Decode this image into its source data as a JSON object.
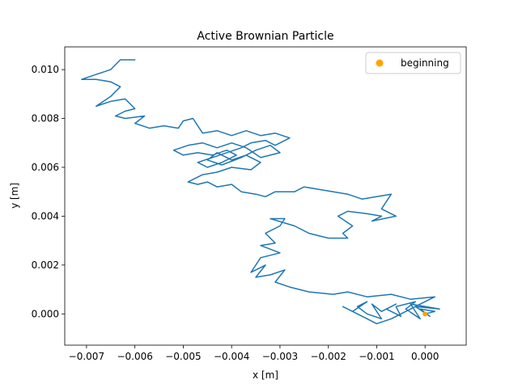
{
  "chart_data": {
    "type": "line",
    "title": "Active Brownian Particle",
    "xlabel": "x [m]",
    "ylabel": "y [m]",
    "xlim": [
      -0.00745,
      0.00085
    ],
    "ylim": [
      -0.00128,
      0.01093
    ],
    "grid": false,
    "legend_placement": "top-right",
    "xticks": [
      -0.007,
      -0.006,
      -0.005,
      -0.004,
      -0.003,
      -0.002,
      -0.001,
      0.0
    ],
    "xtick_labels": [
      "−0.007",
      "−0.006",
      "−0.005",
      "−0.004",
      "−0.003",
      "−0.002",
      "−0.001",
      "0.000"
    ],
    "yticks": [
      0.0,
      0.002,
      0.004,
      0.006,
      0.008,
      0.01
    ],
    "ytick_labels": [
      "0.000",
      "0.002",
      "0.004",
      "0.006",
      "0.008",
      "0.010"
    ],
    "series": [
      {
        "color": "#1f77b4",
        "points": [
          [
            0.0,
            0.0
          ],
          [
            0.0002,
            0.0001
          ],
          [
            -0.0001,
            0.0002
          ],
          [
            0.0001,
            -0.0001
          ],
          [
            -0.0002,
            0.0003
          ],
          [
            0.0003,
            0.0002
          ],
          [
            -0.0003,
            0.0004
          ],
          [
            -0.0001,
            -0.0002
          ],
          [
            -0.0004,
            0.0002
          ],
          [
            -0.0002,
            0.0005
          ],
          [
            -0.0006,
            0.0003
          ],
          [
            -0.0005,
            -0.0001
          ],
          [
            -0.0008,
            0.0002
          ],
          [
            -0.0006,
            0.0004
          ],
          [
            -0.0009,
            0.0001
          ],
          [
            -0.0011,
            0.0004
          ],
          [
            -0.0009,
            -0.0002
          ],
          [
            -0.0012,
            0.0
          ],
          [
            -0.0014,
            0.0003
          ],
          [
            -0.0012,
            0.0005
          ],
          [
            -0.0015,
            0.0001
          ],
          [
            -0.0017,
            0.0003
          ],
          [
            -0.0013,
            -0.0001
          ],
          [
            -0.001,
            -0.0004
          ],
          [
            -0.0007,
            -0.0002
          ],
          [
            -0.0004,
            0.0001
          ],
          [
            -0.0001,
            0.0004
          ],
          [
            0.0002,
            0.0007
          ],
          [
            -0.0003,
            0.0006
          ],
          [
            -0.0007,
            0.0008
          ],
          [
            -0.0012,
            0.0007
          ],
          [
            -0.0016,
            0.0009
          ],
          [
            -0.0019,
            0.0008
          ],
          [
            -0.0024,
            0.0009
          ],
          [
            -0.0028,
            0.0011
          ],
          [
            -0.0031,
            0.0013
          ],
          [
            -0.0029,
            0.0018
          ],
          [
            -0.0032,
            0.0016
          ],
          [
            -0.0035,
            0.0015
          ],
          [
            -0.0033,
            0.002
          ],
          [
            -0.0036,
            0.0017
          ],
          [
            -0.0034,
            0.0023
          ],
          [
            -0.003,
            0.0025
          ],
          [
            -0.0034,
            0.0028
          ],
          [
            -0.0031,
            0.0029
          ],
          [
            -0.0033,
            0.0033
          ],
          [
            -0.003,
            0.0036
          ],
          [
            -0.0029,
            0.0039
          ],
          [
            -0.0032,
            0.0039
          ],
          [
            -0.0027,
            0.0036
          ],
          [
            -0.0024,
            0.0033
          ],
          [
            -0.002,
            0.0031
          ],
          [
            -0.0016,
            0.0031
          ],
          [
            -0.0017,
            0.0033
          ],
          [
            -0.0015,
            0.0036
          ],
          [
            -0.0018,
            0.004
          ],
          [
            -0.0016,
            0.0042
          ],
          [
            -0.0012,
            0.0041
          ],
          [
            -0.0009,
            0.004
          ],
          [
            -0.0011,
            0.0038
          ],
          [
            -0.0006,
            0.004
          ],
          [
            -0.0009,
            0.0043
          ],
          [
            -0.0007,
            0.0049
          ],
          [
            -0.001,
            0.0048
          ],
          [
            -0.0013,
            0.0047
          ],
          [
            -0.0016,
            0.0049
          ],
          [
            -0.0019,
            0.005
          ],
          [
            -0.0022,
            0.0051
          ],
          [
            -0.0025,
            0.0052
          ],
          [
            -0.0027,
            0.005
          ],
          [
            -0.0031,
            0.005
          ],
          [
            -0.0033,
            0.0048
          ],
          [
            -0.0035,
            0.0049
          ],
          [
            -0.0038,
            0.005
          ],
          [
            -0.004,
            0.0053
          ],
          [
            -0.0043,
            0.0052
          ],
          [
            -0.0045,
            0.0054
          ],
          [
            -0.0047,
            0.0053
          ],
          [
            -0.0049,
            0.0054
          ],
          [
            -0.0046,
            0.0057
          ],
          [
            -0.0043,
            0.0058
          ],
          [
            -0.004,
            0.006
          ],
          [
            -0.0036,
            0.0059
          ],
          [
            -0.0034,
            0.0062
          ],
          [
            -0.0037,
            0.0065
          ],
          [
            -0.004,
            0.0063
          ],
          [
            -0.0043,
            0.0066
          ],
          [
            -0.0045,
            0.0063
          ],
          [
            -0.0042,
            0.0061
          ],
          [
            -0.0038,
            0.0064
          ],
          [
            -0.0035,
            0.0067
          ],
          [
            -0.0032,
            0.0069
          ],
          [
            -0.003,
            0.0066
          ],
          [
            -0.0034,
            0.0064
          ],
          [
            -0.0037,
            0.0068
          ],
          [
            -0.004,
            0.007
          ],
          [
            -0.0043,
            0.0068
          ],
          [
            -0.0046,
            0.007
          ],
          [
            -0.0049,
            0.0069
          ],
          [
            -0.0052,
            0.0067
          ],
          [
            -0.005,
            0.0065
          ],
          [
            -0.0047,
            0.0066
          ],
          [
            -0.0044,
            0.0065
          ],
          [
            -0.0041,
            0.0067
          ],
          [
            -0.0039,
            0.0065
          ],
          [
            -0.0042,
            0.0062
          ],
          [
            -0.0045,
            0.006
          ],
          [
            -0.0047,
            0.0062
          ],
          [
            -0.0044,
            0.0064
          ],
          [
            -0.0041,
            0.0066
          ],
          [
            -0.0038,
            0.0068
          ],
          [
            -0.0036,
            0.007
          ],
          [
            -0.0033,
            0.0071
          ],
          [
            -0.0031,
            0.0069
          ],
          [
            -0.0028,
            0.0072
          ],
          [
            -0.0031,
            0.0074
          ],
          [
            -0.0034,
            0.0073
          ],
          [
            -0.0037,
            0.0075
          ],
          [
            -0.004,
            0.0073
          ],
          [
            -0.0043,
            0.0075
          ],
          [
            -0.0046,
            0.0074
          ],
          [
            -0.0048,
            0.008
          ],
          [
            -0.005,
            0.0079
          ],
          [
            -0.0051,
            0.0076
          ],
          [
            -0.0054,
            0.0077
          ],
          [
            -0.0057,
            0.0076
          ],
          [
            -0.006,
            0.0078
          ],
          [
            -0.0058,
            0.0081
          ],
          [
            -0.0062,
            0.008
          ],
          [
            -0.0064,
            0.0081
          ],
          [
            -0.0062,
            0.0083
          ],
          [
            -0.006,
            0.0084
          ],
          [
            -0.0062,
            0.0088
          ],
          [
            -0.0065,
            0.0087
          ],
          [
            -0.0068,
            0.0085
          ],
          [
            -0.0065,
            0.0089
          ],
          [
            -0.0063,
            0.0093
          ],
          [
            -0.0065,
            0.0095
          ],
          [
            -0.0068,
            0.0096
          ],
          [
            -0.0071,
            0.0096
          ],
          [
            -0.0068,
            0.0098
          ],
          [
            -0.0065,
            0.01
          ],
          [
            -0.0063,
            0.0104
          ],
          [
            -0.006,
            0.0104
          ]
        ]
      }
    ],
    "beginning_marker": {
      "label": "beginning",
      "x": 0.0,
      "y": 0.0,
      "color": "#ffa500"
    }
  }
}
